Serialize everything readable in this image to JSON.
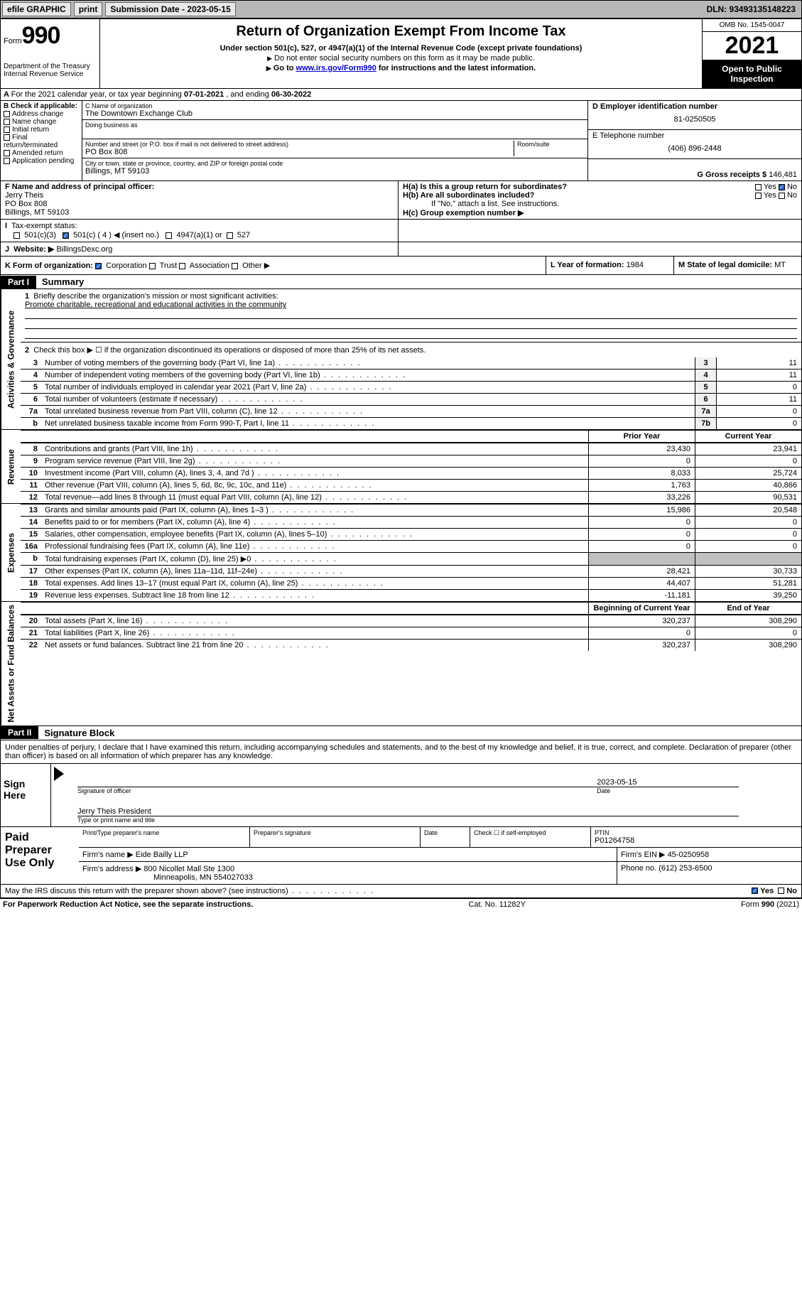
{
  "topbar": {
    "efile": "efile GRAPHIC",
    "print": "print",
    "subdate_label": "Submission Date - ",
    "subdate": "2023-05-15",
    "dln": "DLN: 93493135148223"
  },
  "hdr": {
    "form_label": "Form",
    "form_num": "990",
    "dept": "Department of the Treasury\nInternal Revenue Service",
    "title": "Return of Organization Exempt From Income Tax",
    "sub1": "Under section 501(c), 527, or 4947(a)(1) of the Internal Revenue Code (except private foundations)",
    "sub2": "Do not enter social security numbers on this form as it may be made public.",
    "sub3_a": "Go to ",
    "sub3_link": "www.irs.gov/Form990",
    "sub3_b": " for instructions and the latest information.",
    "omb": "OMB No. 1545-0047",
    "year": "2021",
    "open": "Open to Public Inspection"
  },
  "rowA": {
    "text_a": "For the 2021 calendar year, or tax year beginning ",
    "begin": "07-01-2021",
    "text_b": " , and ending ",
    "end": "06-30-2022"
  },
  "colB": {
    "label": "B Check if applicable:",
    "items": [
      "Address change",
      "Name change",
      "Initial return",
      "Final return/terminated",
      "Amended return",
      "Application pending"
    ]
  },
  "colC": {
    "name_lbl": "C Name of organization",
    "name": "The Downtown Exchange Club",
    "dba_lbl": "Doing business as",
    "addr_lbl": "Number and street (or P.O. box if mail is not delivered to street address)",
    "room_lbl": "Room/suite",
    "addr": "PO Box 808",
    "city_lbl": "City or town, state or province, country, and ZIP or foreign postal code",
    "city": "Billings, MT  59103"
  },
  "colD": {
    "d_lbl": "D Employer identification number",
    "ein": "81-0250505",
    "e_lbl": "E Telephone number",
    "phone": "(406) 896-2448",
    "g_lbl": "G Gross receipts $ ",
    "gross": "146,481"
  },
  "rowF": {
    "f_lbl": "F Name and address of principal officer:",
    "f_name": "Jerry Theis",
    "f_addr1": "PO Box 808",
    "f_addr2": "Billings, MT  59103",
    "ha": "H(a)  Is this a group return for subordinates?",
    "hb": "H(b)  Are all subordinates included?",
    "hb_note": "If \"No,\" attach a list. See instructions.",
    "hc": "H(c)  Group exemption number ▶",
    "yes": "Yes",
    "no": "No"
  },
  "rowI": {
    "i_lbl": "Tax-exempt status:",
    "o1": "501(c)(3)",
    "o2": "501(c) ( 4 ) ◀ (insert no.)",
    "o3": "4947(a)(1) or",
    "o4": "527",
    "j_lbl": "Website: ▶",
    "website": "BillingsDexc.org"
  },
  "rowK": {
    "k_lbl": "K Form of organization:",
    "opts": [
      "Corporation",
      "Trust",
      "Association",
      "Other ▶"
    ],
    "l_lbl": "L Year of formation: ",
    "l_val": "1984",
    "m_lbl": "M State of legal domicile: ",
    "m_val": "MT"
  },
  "part1": {
    "hdr": "Part I",
    "title": "Summary",
    "q1_lbl": "1",
    "q1": "Briefly describe the organization's mission or most significant activities:",
    "q1_ans": "Promote charitable, recreational and educational activities in the community",
    "q2_lbl": "2",
    "q2": "Check this box ▶ ☐ if the organization discontinued its operations or disposed of more than 25% of its net assets.",
    "gov_label": "Activities & Governance",
    "rev_label": "Revenue",
    "exp_label": "Expenses",
    "na_label": "Net Assets or Fund Balances",
    "prior": "Prior Year",
    "current": "Current Year",
    "boy": "Beginning of Current Year",
    "eoy": "End of Year"
  },
  "lines_gov": [
    {
      "n": "3",
      "t": "Number of voting members of the governing body (Part VI, line 1a)",
      "bn": "3",
      "bv": "11"
    },
    {
      "n": "4",
      "t": "Number of independent voting members of the governing body (Part VI, line 1b)",
      "bn": "4",
      "bv": "11"
    },
    {
      "n": "5",
      "t": "Total number of individuals employed in calendar year 2021 (Part V, line 2a)",
      "bn": "5",
      "bv": "0"
    },
    {
      "n": "6",
      "t": "Total number of volunteers (estimate if necessary)",
      "bn": "6",
      "bv": "11"
    },
    {
      "n": "7a",
      "t": "Total unrelated business revenue from Part VIII, column (C), line 12",
      "bn": "7a",
      "bv": "0"
    },
    {
      "n": "b",
      "t": "Net unrelated business taxable income from Form 990-T, Part I, line 11",
      "bn": "7b",
      "bv": "0"
    }
  ],
  "lines_rev": [
    {
      "n": "8",
      "t": "Contributions and grants (Part VIII, line 1h)",
      "v1": "23,430",
      "v2": "23,941"
    },
    {
      "n": "9",
      "t": "Program service revenue (Part VIII, line 2g)",
      "v1": "0",
      "v2": "0"
    },
    {
      "n": "10",
      "t": "Investment income (Part VIII, column (A), lines 3, 4, and 7d )",
      "v1": "8,033",
      "v2": "25,724"
    },
    {
      "n": "11",
      "t": "Other revenue (Part VIII, column (A), lines 5, 6d, 8c, 9c, 10c, and 11e)",
      "v1": "1,763",
      "v2": "40,866"
    },
    {
      "n": "12",
      "t": "Total revenue—add lines 8 through 11 (must equal Part VIII, column (A), line 12)",
      "v1": "33,226",
      "v2": "90,531"
    }
  ],
  "lines_exp": [
    {
      "n": "13",
      "t": "Grants and similar amounts paid (Part IX, column (A), lines 1–3 )",
      "v1": "15,986",
      "v2": "20,548"
    },
    {
      "n": "14",
      "t": "Benefits paid to or for members (Part IX, column (A), line 4)",
      "v1": "0",
      "v2": "0"
    },
    {
      "n": "15",
      "t": "Salaries, other compensation, employee benefits (Part IX, column (A), lines 5–10)",
      "v1": "0",
      "v2": "0"
    },
    {
      "n": "16a",
      "t": "Professional fundraising fees (Part IX, column (A), line 11e)",
      "v1": "0",
      "v2": "0"
    },
    {
      "n": "b",
      "t": "Total fundraising expenses (Part IX, column (D), line 25) ▶0",
      "v1": "",
      "v2": "",
      "shade": true
    },
    {
      "n": "17",
      "t": "Other expenses (Part IX, column (A), lines 11a–11d, 11f–24e)",
      "v1": "28,421",
      "v2": "30,733"
    },
    {
      "n": "18",
      "t": "Total expenses. Add lines 13–17 (must equal Part IX, column (A), line 25)",
      "v1": "44,407",
      "v2": "51,281"
    },
    {
      "n": "19",
      "t": "Revenue less expenses. Subtract line 18 from line 12",
      "v1": "-11,181",
      "v2": "39,250"
    }
  ],
  "lines_na": [
    {
      "n": "20",
      "t": "Total assets (Part X, line 16)",
      "v1": "320,237",
      "v2": "308,290"
    },
    {
      "n": "21",
      "t": "Total liabilities (Part X, line 26)",
      "v1": "0",
      "v2": "0"
    },
    {
      "n": "22",
      "t": "Net assets or fund balances. Subtract line 21 from line 20",
      "v1": "320,237",
      "v2": "308,290"
    }
  ],
  "part2": {
    "hdr": "Part II",
    "title": "Signature Block",
    "decl": "Under penalties of perjury, I declare that I have examined this return, including accompanying schedules and statements, and to the best of my knowledge and belief, it is true, correct, and complete. Declaration of preparer (other than officer) is based on all information of which preparer has any knowledge.",
    "sign_here": "Sign Here",
    "sig_officer": "Signature of officer",
    "sig_date_lbl": "Date",
    "sig_date": "2023-05-15",
    "sig_name": "Jerry Theis  President",
    "sig_type": "Type or print name and title",
    "paid": "Paid Preparer Use Only",
    "p_name_lbl": "Print/Type preparer's name",
    "p_sig_lbl": "Preparer's signature",
    "p_date_lbl": "Date",
    "p_check": "Check ☐ if self-employed",
    "ptin_lbl": "PTIN",
    "ptin": "P01264758",
    "firm_name_lbl": "Firm's name    ▶ ",
    "firm_name": "Eide Bailly LLP",
    "firm_ein_lbl": "Firm's EIN ▶ ",
    "firm_ein": "45-0250958",
    "firm_addr_lbl": "Firm's address ▶ ",
    "firm_addr": "800 Nicollet Mall Ste 1300",
    "firm_city": "Minneapolis, MN  554027033",
    "firm_phone_lbl": "Phone no. ",
    "firm_phone": "(612) 253-6500",
    "may_discuss": "May the IRS discuss this return with the preparer shown above? (see instructions)",
    "yes": "Yes",
    "no": "No"
  },
  "footer": {
    "l": "For Paperwork Reduction Act Notice, see the separate instructions.",
    "c": "Cat. No. 11282Y",
    "r": "Form 990 (2021)"
  }
}
